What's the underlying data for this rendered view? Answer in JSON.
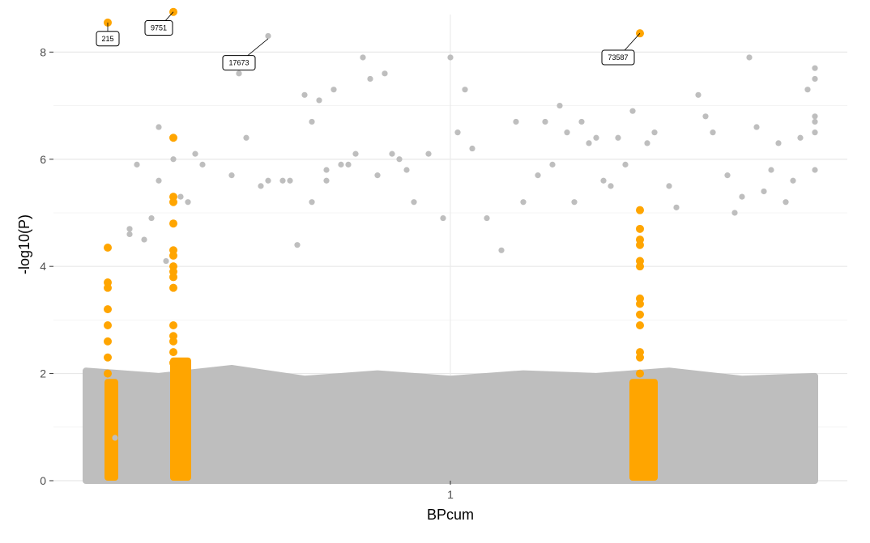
{
  "chart_data": {
    "type": "scatter",
    "title": "",
    "xlabel": "BPcum",
    "ylabel": "-log10(P)",
    "xlim": [
      0,
      1.0
    ],
    "ylim": [
      0,
      8.7
    ],
    "grid": true,
    "x_ticks": [
      {
        "value": 0.5,
        "label": "1"
      }
    ],
    "y_ticks": [
      {
        "value": 0,
        "label": "0"
      },
      {
        "value": 2,
        "label": "2"
      },
      {
        "value": 4,
        "label": "4"
      },
      {
        "value": 6,
        "label": "6"
      },
      {
        "value": 8,
        "label": "8"
      }
    ],
    "series": [
      {
        "color": "#bebebe",
        "points": [
          [
            0.04,
            0.8
          ],
          [
            0.06,
            4.6
          ],
          [
            0.06,
            4.7
          ],
          [
            0.07,
            5.9
          ],
          [
            0.08,
            4.5
          ],
          [
            0.09,
            4.9
          ],
          [
            0.1,
            5.6
          ],
          [
            0.1,
            6.6
          ],
          [
            0.11,
            4.1
          ],
          [
            0.12,
            6.0
          ],
          [
            0.13,
            5.3
          ],
          [
            0.14,
            5.2
          ],
          [
            0.15,
            6.1
          ],
          [
            0.16,
            5.9
          ],
          [
            0.2,
            5.7
          ],
          [
            0.21,
            7.6
          ],
          [
            0.22,
            6.4
          ],
          [
            0.24,
            5.5
          ],
          [
            0.25,
            5.6
          ],
          [
            0.27,
            5.6
          ],
          [
            0.28,
            5.6
          ],
          [
            0.29,
            4.4
          ],
          [
            0.3,
            7.2
          ],
          [
            0.31,
            6.7
          ],
          [
            0.31,
            5.2
          ],
          [
            0.32,
            7.1
          ],
          [
            0.33,
            5.8
          ],
          [
            0.33,
            5.6
          ],
          [
            0.34,
            7.3
          ],
          [
            0.35,
            5.9
          ],
          [
            0.36,
            5.9
          ],
          [
            0.37,
            6.1
          ],
          [
            0.38,
            7.9
          ],
          [
            0.39,
            7.5
          ],
          [
            0.4,
            5.7
          ],
          [
            0.41,
            7.6
          ],
          [
            0.42,
            6.1
          ],
          [
            0.43,
            6.0
          ],
          [
            0.44,
            5.8
          ],
          [
            0.45,
            5.2
          ],
          [
            0.47,
            6.1
          ],
          [
            0.49,
            4.9
          ],
          [
            0.5,
            7.9
          ],
          [
            0.51,
            6.5
          ],
          [
            0.52,
            7.3
          ],
          [
            0.53,
            6.2
          ],
          [
            0.55,
            4.9
          ],
          [
            0.57,
            4.3
          ],
          [
            0.59,
            6.7
          ],
          [
            0.6,
            5.2
          ],
          [
            0.62,
            5.7
          ],
          [
            0.63,
            6.7
          ],
          [
            0.64,
            5.9
          ],
          [
            0.65,
            7.0
          ],
          [
            0.66,
            6.5
          ],
          [
            0.67,
            5.2
          ],
          [
            0.68,
            6.7
          ],
          [
            0.69,
            6.3
          ],
          [
            0.7,
            6.4
          ],
          [
            0.71,
            5.6
          ],
          [
            0.72,
            5.5
          ],
          [
            0.73,
            6.4
          ],
          [
            0.74,
            5.9
          ],
          [
            0.75,
            6.9
          ],
          [
            0.77,
            6.3
          ],
          [
            0.78,
            6.5
          ],
          [
            0.8,
            5.5
          ],
          [
            0.81,
            5.1
          ],
          [
            0.84,
            7.2
          ],
          [
            0.85,
            6.8
          ],
          [
            0.86,
            6.5
          ],
          [
            0.88,
            5.7
          ],
          [
            0.89,
            5.0
          ],
          [
            0.9,
            5.3
          ],
          [
            0.91,
            7.9
          ],
          [
            0.92,
            6.6
          ],
          [
            0.93,
            5.4
          ],
          [
            0.94,
            5.8
          ],
          [
            0.95,
            6.3
          ],
          [
            0.96,
            5.2
          ],
          [
            0.97,
            5.6
          ],
          [
            0.98,
            6.4
          ],
          [
            0.99,
            7.3
          ],
          [
            1.0,
            6.7
          ],
          [
            1.0,
            6.5
          ],
          [
            1.0,
            7.5
          ],
          [
            1.0,
            7.7
          ],
          [
            1.0,
            6.8
          ],
          [
            1.0,
            5.8
          ],
          [
            0.25,
            8.3
          ]
        ]
      },
      {
        "color": "#ffa500",
        "points": [
          [
            0.03,
            8.55
          ],
          [
            0.03,
            4.35
          ],
          [
            0.03,
            3.7
          ],
          [
            0.03,
            3.6
          ],
          [
            0.03,
            3.2
          ],
          [
            0.03,
            2.9
          ],
          [
            0.03,
            2.6
          ],
          [
            0.03,
            2.3
          ],
          [
            0.03,
            2.0
          ],
          [
            0.12,
            8.75
          ],
          [
            0.12,
            6.4
          ],
          [
            0.12,
            5.3
          ],
          [
            0.12,
            5.2
          ],
          [
            0.12,
            4.8
          ],
          [
            0.12,
            4.3
          ],
          [
            0.12,
            4.2
          ],
          [
            0.12,
            4.0
          ],
          [
            0.12,
            3.9
          ],
          [
            0.12,
            3.8
          ],
          [
            0.12,
            3.6
          ],
          [
            0.12,
            2.9
          ],
          [
            0.12,
            2.7
          ],
          [
            0.12,
            2.6
          ],
          [
            0.12,
            2.4
          ],
          [
            0.12,
            2.2
          ],
          [
            0.76,
            8.35
          ],
          [
            0.76,
            5.05
          ],
          [
            0.76,
            4.7
          ],
          [
            0.76,
            4.5
          ],
          [
            0.76,
            4.4
          ],
          [
            0.76,
            4.1
          ],
          [
            0.76,
            4.0
          ],
          [
            0.76,
            3.4
          ],
          [
            0.76,
            3.3
          ],
          [
            0.76,
            3.1
          ],
          [
            0.76,
            2.9
          ],
          [
            0.76,
            2.4
          ],
          [
            0.76,
            2.3
          ],
          [
            0.76,
            2.0
          ]
        ]
      }
    ],
    "bands": [
      {
        "color": "#ffa500",
        "x": [
          0.03,
          0.04
        ],
        "y": [
          0,
          1.9
        ]
      },
      {
        "color": "#ffa500",
        "x": [
          0.12,
          0.14
        ],
        "y": [
          0,
          2.3
        ]
      },
      {
        "color": "#ffa500",
        "x": [
          0.75,
          0.78
        ],
        "y": [
          0,
          1.9
        ]
      }
    ],
    "annotations": [
      {
        "label": "215",
        "x": 0.03,
        "y": 8.55,
        "dx": 0.0,
        "dy": -0.3
      },
      {
        "label": "9751",
        "x": 0.12,
        "y": 8.75,
        "dx": -0.02,
        "dy": -0.3
      },
      {
        "label": "17673",
        "x": 0.25,
        "y": 8.25,
        "dx": -0.04,
        "dy": -0.45
      },
      {
        "label": "73587",
        "x": 0.76,
        "y": 8.35,
        "dx": -0.03,
        "dy": -0.45
      }
    ]
  }
}
